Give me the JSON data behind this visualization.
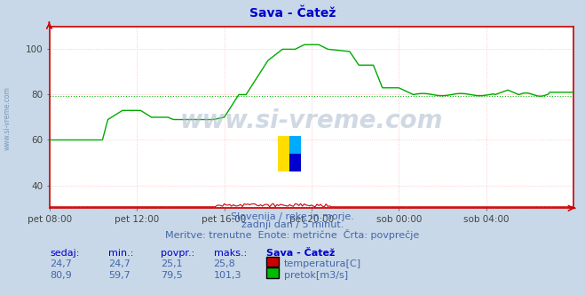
{
  "title": "Sava - Čatež",
  "title_color": "#0000cc",
  "bg_color": "#c8d8e8",
  "plot_bg_color": "#ffffff",
  "grid_color": "#ffaaaa",
  "grid_minor_color": "#ffdddd",
  "ylim": [
    30,
    110
  ],
  "yticks": [
    40,
    60,
    80,
    100
  ],
  "xlabel_ticks": [
    "pet 08:00",
    "pet 12:00",
    "pet 16:00",
    "pet 20:00",
    "sob 00:00",
    "sob 04:00"
  ],
  "xtick_positions": [
    0,
    48,
    96,
    144,
    192,
    240
  ],
  "total_points": 289,
  "watermark": "www.si-vreme.com",
  "subtitle1": "Slovenija / reke in morje.",
  "subtitle2": "zadnji dan / 5 minut.",
  "subtitle3": "Meritve: trenutne  Enote: metrične  Črta: povprečje",
  "subtitle_color": "#4466aa",
  "footer_header": [
    "sedaj:",
    "min.:",
    "povpr.:",
    "maks.:",
    "Sava - Čatež"
  ],
  "footer_row1": [
    "24,7",
    "24,7",
    "25,1",
    "25,8"
  ],
  "footer_row2": [
    "80,9",
    "59,7",
    "79,5",
    "101,3"
  ],
  "footer_label1": "temperatura[C]",
  "footer_label2": "pretok[m3/s]",
  "footer_color1": "#cc0000",
  "footer_color2": "#00bb00",
  "footer_text_color": "#4466aa",
  "footer_header_color": "#0000cc",
  "temp_color": "#cc0000",
  "flow_color": "#00aa00",
  "avg_flow_color": "#00bb00",
  "avg_temp_color": "#cc0000",
  "spine_color": "#cc0000",
  "sidebar_color": "#7799bb"
}
